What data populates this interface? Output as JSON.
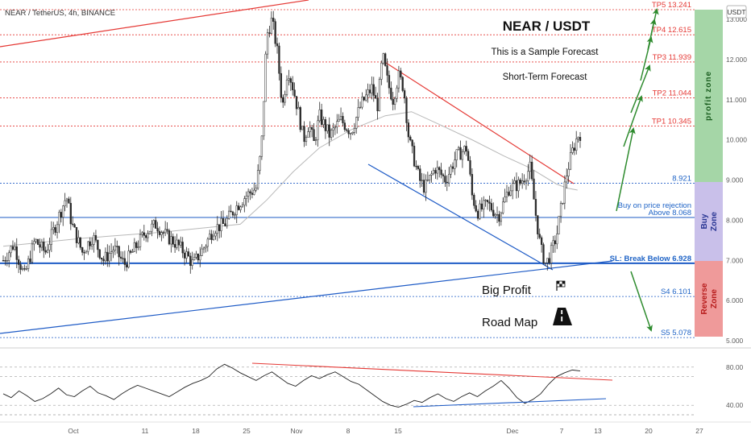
{
  "header": {
    "symbol_line": "NEAR / TetherUS, 4h, BINANCE",
    "currency_badge": "USDT"
  },
  "colors": {
    "candle": "#2b2b2b",
    "red_line": "#e53935",
    "blue_line": "#1e5bc6",
    "green_arrow": "#2e8b2e",
    "profit_zone": "#a5d6a7",
    "buy_zone": "#c9c0ea",
    "reverse_zone": "#ef9a9a",
    "ma_line": "#b8b8b8"
  },
  "annotations": {
    "title": "NEAR / USDT",
    "sample": "This is a Sample Forecast",
    "short_term": "Short-Term Forecast",
    "big_profit": "Big Profit",
    "road_map": "Road Map",
    "zone_profit": "profit zone",
    "zone_buy_1": "Buy",
    "zone_buy_2": "Zone",
    "zone_reverse_1": "Reverse",
    "zone_reverse_2": "Zone"
  },
  "price_levels": [
    {
      "label": "TP5 13.241",
      "value": 13.241,
      "color": "red",
      "bold": false
    },
    {
      "label": "TP4 12.615",
      "value": 12.615,
      "color": "red",
      "bold": false
    },
    {
      "label": "TP3 11.939",
      "value": 11.939,
      "color": "red",
      "bold": false
    },
    {
      "label": "TP2 11.044",
      "value": 11.044,
      "color": "red",
      "bold": false
    },
    {
      "label": "TP1 10.345",
      "value": 10.345,
      "color": "red",
      "bold": false
    },
    {
      "label": "8.921",
      "value": 8.921,
      "color": "blue",
      "bold": false
    },
    {
      "label": "Buy on price rejection",
      "value": 8.25,
      "color": "blue",
      "bold": false,
      "no_line": true
    },
    {
      "label": "Above 8.068",
      "value": 8.068,
      "color": "blue",
      "bold": false,
      "solid": true
    },
    {
      "label": "SL: Break Below 6.928",
      "value": 6.928,
      "color": "blue",
      "bold": true,
      "solid": true
    },
    {
      "label": "S4 6.101",
      "value": 6.101,
      "color": "blue",
      "bold": false
    },
    {
      "label": "S5 5.078",
      "value": 5.078,
      "color": "blue",
      "bold": false
    }
  ],
  "chart_data": [
    {
      "type": "line",
      "title": "NEAR / TetherUS, 4h, BINANCE",
      "ylim": [
        4.85,
        13.4
      ],
      "y_ticks": [
        "13.000",
        "12.000",
        "11.000",
        "10.000",
        "9.000",
        "8.000",
        "7.000",
        "6.000",
        "5.000"
      ],
      "x_ticks": [
        "Oct",
        "11",
        "18",
        "25",
        "Nov",
        "8",
        "15",
        "Dec",
        "7",
        "13",
        "20",
        "27"
      ],
      "price_path": [
        [
          0,
          7.0
        ],
        [
          4,
          7.4
        ],
        [
          8,
          6.6
        ],
        [
          12,
          7.5
        ],
        [
          16,
          7.2
        ],
        [
          20,
          7.9
        ],
        [
          24,
          8.6
        ],
        [
          26,
          7.9
        ],
        [
          30,
          7.2
        ],
        [
          34,
          7.6
        ],
        [
          38,
          7.0
        ],
        [
          42,
          7.3
        ],
        [
          46,
          6.9
        ],
        [
          50,
          7.3
        ],
        [
          54,
          7.7
        ],
        [
          58,
          7.9
        ],
        [
          62,
          7.6
        ],
        [
          66,
          7.4
        ],
        [
          70,
          7.1
        ],
        [
          72,
          6.9
        ],
        [
          76,
          7.3
        ],
        [
          80,
          7.8
        ],
        [
          84,
          7.9
        ],
        [
          88,
          8.3
        ],
        [
          92,
          8.6
        ],
        [
          96,
          8.8
        ],
        [
          98,
          9.8
        ],
        [
          100,
          12.6
        ],
        [
          102,
          13.0
        ],
        [
          104,
          12.2
        ],
        [
          106,
          10.8
        ],
        [
          108,
          11.8
        ],
        [
          110,
          11.3
        ],
        [
          112,
          10.7
        ],
        [
          114,
          10.0
        ],
        [
          116,
          10.4
        ],
        [
          118,
          9.9
        ],
        [
          120,
          10.6
        ],
        [
          124,
          10.1
        ],
        [
          128,
          10.5
        ],
        [
          132,
          10.2
        ],
        [
          136,
          10.9
        ],
        [
          140,
          11.3
        ],
        [
          142,
          10.8
        ],
        [
          144,
          12.1
        ],
        [
          146,
          11.4
        ],
        [
          148,
          11.0
        ],
        [
          150,
          11.6
        ],
        [
          152,
          11.3
        ],
        [
          154,
          10.0
        ],
        [
          156,
          9.5
        ],
        [
          158,
          9.0
        ],
        [
          160,
          8.8
        ],
        [
          164,
          9.3
        ],
        [
          168,
          9.0
        ],
        [
          172,
          9.6
        ],
        [
          176,
          9.8
        ],
        [
          178,
          8.6
        ],
        [
          180,
          8.2
        ],
        [
          184,
          8.4
        ],
        [
          188,
          8.1
        ],
        [
          192,
          8.8
        ],
        [
          196,
          8.9
        ],
        [
          200,
          9.3
        ],
        [
          202,
          8.2
        ],
        [
          204,
          7.3
        ],
        [
          206,
          6.9
        ],
        [
          208,
          7.2
        ],
        [
          210,
          7.6
        ],
        [
          212,
          8.4
        ],
        [
          214,
          9.2
        ],
        [
          216,
          9.7
        ],
        [
          218,
          10.1
        ],
        [
          219,
          10.15
        ]
      ],
      "x_days": {
        "start": "Sep 24",
        "end": "Dec 9"
      },
      "rsi": {
        "ylim": [
          30,
          90
        ],
        "levels": [
          80,
          70,
          40,
          30
        ],
        "y_ticks": [
          "80.00",
          "40.00"
        ],
        "values": [
          52,
          48,
          55,
          50,
          44,
          47,
          52,
          58,
          51,
          49,
          55,
          60,
          53,
          50,
          46,
          52,
          57,
          61,
          58,
          55,
          52,
          49,
          54,
          59,
          63,
          66,
          70,
          78,
          83,
          79,
          74,
          70,
          66,
          71,
          75,
          69,
          63,
          60,
          66,
          71,
          68,
          72,
          75,
          70,
          65,
          62,
          56,
          50,
          44,
          40,
          38,
          41,
          45,
          43,
          48,
          52,
          47,
          44,
          49,
          53,
          49,
          55,
          60,
          66,
          58,
          48,
          42,
          46,
          52,
          62,
          70,
          74,
          77,
          76
        ]
      }
    }
  ]
}
